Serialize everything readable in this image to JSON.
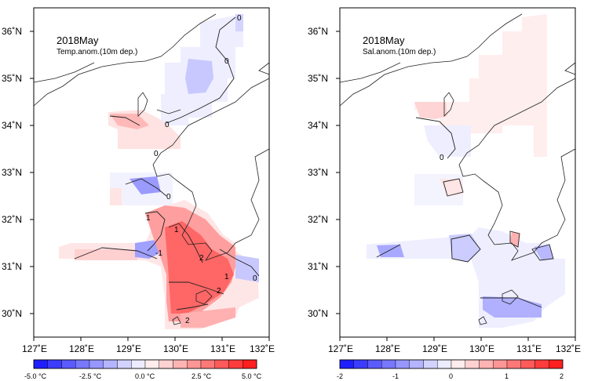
{
  "left_panel": {
    "title": "2018May",
    "subtitle": "Temp.anom.(10m dep.)",
    "lon_labels": [
      "127˚E",
      "128˚E",
      "129˚E",
      "130˚E",
      "131˚E",
      "132˚E"
    ],
    "lat_labels": [
      "36˚N",
      "35˚N",
      "34˚N",
      "33˚N",
      "32˚N",
      "31˚N",
      "30˚N"
    ],
    "contour_labels": [
      "0",
      "0",
      "0",
      "0",
      "0",
      "1",
      "1",
      "-1",
      "2",
      "2",
      "1",
      "0",
      "2"
    ],
    "colorbar": {
      "labels": [
        "-5.0 °C",
        "-2.5 °C",
        "0.0 °C",
        "2.5 °C",
        "5.0 °C"
      ],
      "min": -5.0,
      "max": 5.0,
      "colors": [
        "#1f1fff",
        "#3c3cff",
        "#5a5aff",
        "#7878ff",
        "#9696ff",
        "#b4b4ff",
        "#d2d2ff",
        "#ececff",
        "#ffecec",
        "#ffd2d2",
        "#ffb4b4",
        "#ff9696",
        "#ff7878",
        "#ff5a5a",
        "#ff3c3c",
        "#ff1f1f"
      ]
    }
  },
  "right_panel": {
    "title": "2018May",
    "subtitle": "Sal.anom.(10m dep.)",
    "lon_labels": [
      "127˚E",
      "128˚E",
      "129˚E",
      "130˚E",
      "131˚E",
      "132˚E"
    ],
    "lat_labels": [
      "36˚N",
      "35˚N",
      "34˚N",
      "33˚N",
      "32˚N",
      "31˚N",
      "30˚N"
    ],
    "contour_labels": [
      "0"
    ],
    "colorbar": {
      "labels": [
        "-2",
        "-1",
        "0",
        "1",
        "2"
      ],
      "min": -2,
      "max": 2,
      "colors": [
        "#1f1fff",
        "#3c3cff",
        "#5a5aff",
        "#7878ff",
        "#9696ff",
        "#b4b4ff",
        "#d2d2ff",
        "#ececff",
        "#ffecec",
        "#ffd2d2",
        "#ffb4b4",
        "#ff9696",
        "#ff7878",
        "#ff5a5a",
        "#ff3c3c",
        "#ff1f1f"
      ]
    }
  }
}
